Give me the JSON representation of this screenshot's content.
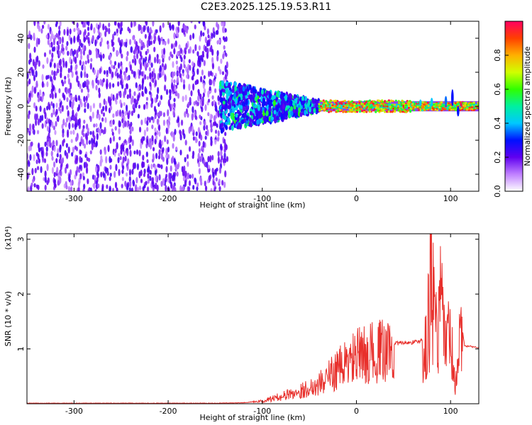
{
  "title": "C2E3.2025.125.19.53.R11",
  "colorbar": {
    "label": "Normalized spectral amplitude",
    "ticks": [
      0.0,
      0.2,
      0.4,
      0.6,
      0.8
    ],
    "tick_labels": [
      "0.0",
      "0.2",
      "0.4",
      "0.6",
      "0.8"
    ],
    "range": [
      0,
      1
    ]
  },
  "chart_data": [
    {
      "type": "heatmap",
      "xlabel": "Height of straight line (km)",
      "ylabel": "Frequency (Hz)",
      "xlim": [
        -350,
        130
      ],
      "ylim": [
        -50,
        50
      ],
      "xticks": [
        -300,
        -200,
        -100,
        0,
        100
      ],
      "xtick_labels": [
        "-300",
        "-200",
        "-100",
        "0",
        "100"
      ],
      "yticks": [
        -40,
        -20,
        0,
        20,
        40
      ],
      "ytick_labels": [
        "-40",
        "-20",
        "0",
        "20",
        "40"
      ],
      "colormap": "rainbow",
      "regions": [
        {
          "x": [
            -350,
            -145
          ],
          "y": [
            -50,
            50
          ],
          "amplitude": 0.15,
          "pattern": "broadband noise"
        },
        {
          "x": [
            -145,
            -40
          ],
          "y": [
            -15,
            15
          ],
          "amplitude": 0.35,
          "pattern": "converging band"
        },
        {
          "x": [
            -40,
            130
          ],
          "y": [
            -3,
            3
          ],
          "amplitude": 0.9,
          "pattern": "narrow band at 0 Hz"
        }
      ]
    },
    {
      "type": "line",
      "xlabel": "Height of straight line (km)",
      "ylabel": "SNR (10 * v/v)",
      "y_multiplier": "(x10⁴)",
      "xlim": [
        -350,
        130
      ],
      "ylim": [
        0,
        3.1
      ],
      "xticks": [
        -300,
        -200,
        -100,
        0,
        100
      ],
      "xtick_labels": [
        "-300",
        "-200",
        "-100",
        "0",
        "100"
      ],
      "yticks": [
        1,
        2,
        3
      ],
      "ytick_labels": [
        "1",
        "2",
        "3"
      ],
      "color": "#e8302c",
      "series": [
        {
          "x": [
            -350,
            -300,
            -250,
            -200,
            -150,
            -120,
            -100,
            -80,
            -60,
            -40,
            -20,
            0,
            20,
            40,
            60,
            70,
            75,
            78,
            82,
            85,
            90,
            95,
            100,
            105,
            110,
            115,
            120,
            130
          ],
          "values": [
            0.01,
            0.01,
            0.01,
            0.01,
            0.01,
            0.02,
            0.05,
            0.15,
            0.25,
            0.4,
            0.7,
            0.95,
            1.05,
            1.1,
            1.12,
            1.15,
            1.5,
            3.1,
            2.6,
            1.9,
            2.5,
            1.5,
            1.7,
            0.3,
            1.7,
            1.05,
            1.05,
            1.02
          ]
        }
      ]
    }
  ]
}
